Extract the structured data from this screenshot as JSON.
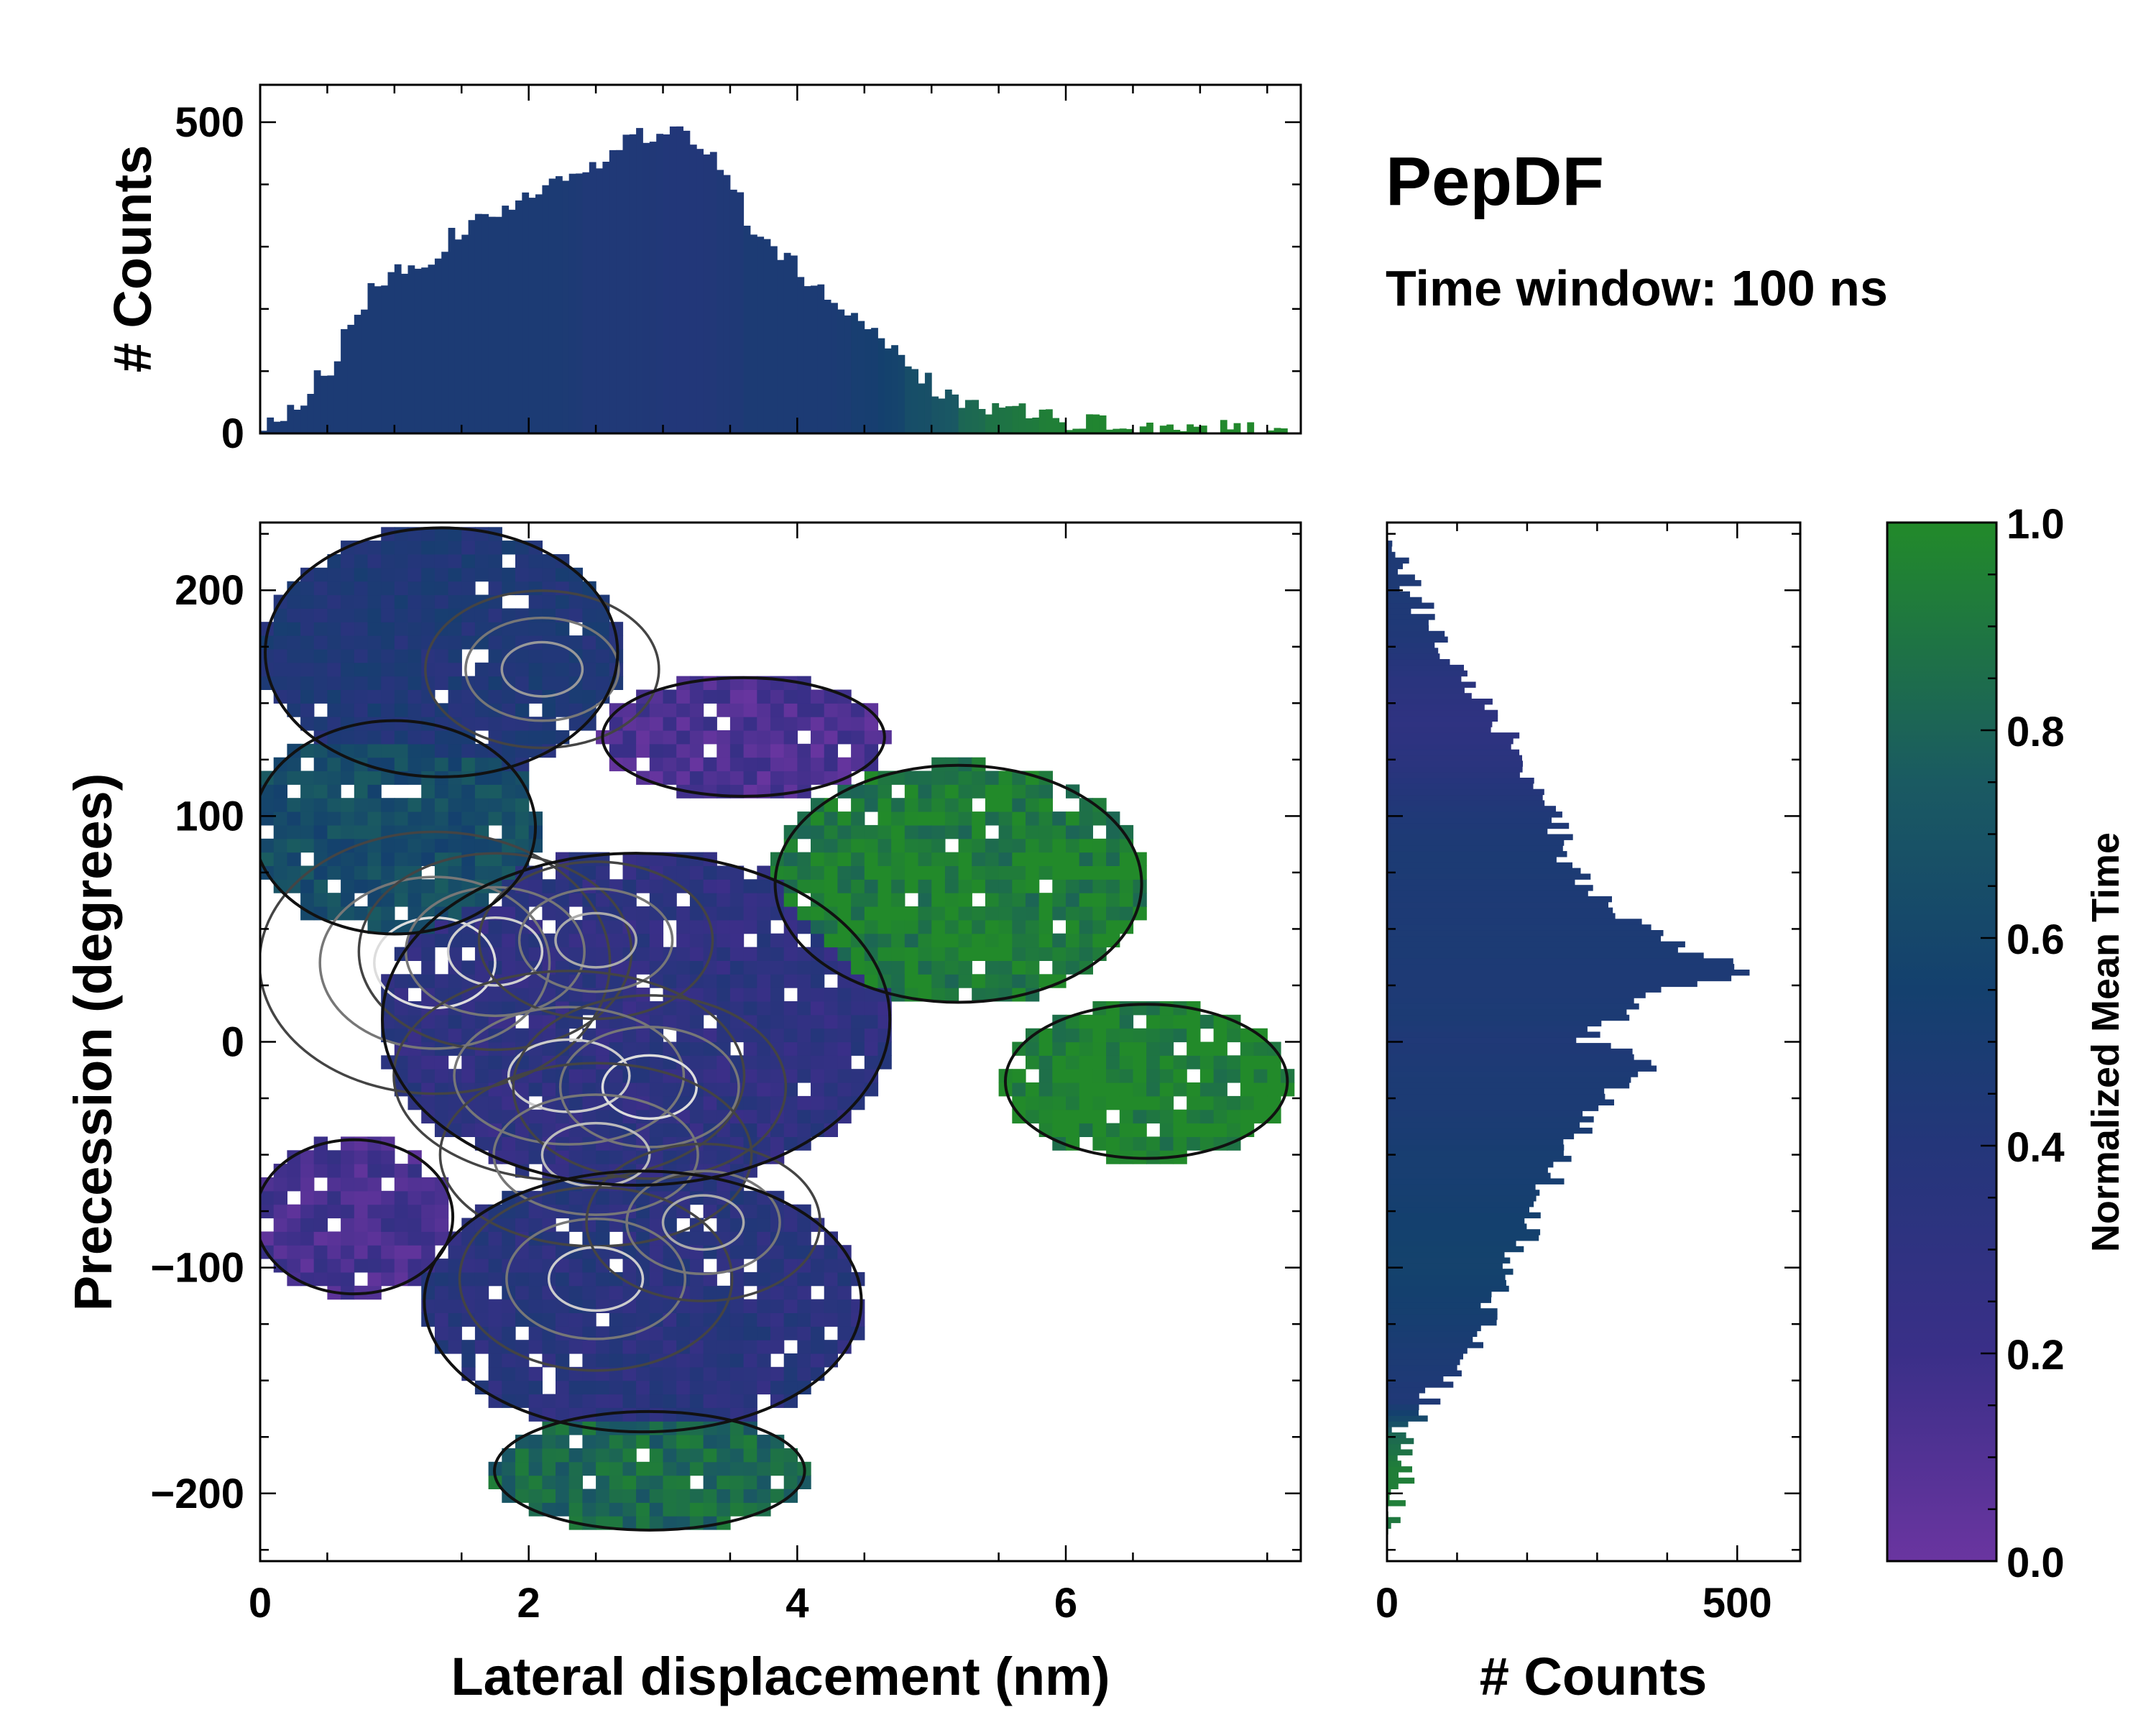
{
  "chart_data": [
    {
      "type": "heatmap",
      "panel": "main",
      "title": "PepDF",
      "subtitle": "Time window: 100 ns",
      "xlabel": "Lateral displacement (nm)",
      "ylabel": "Precession (degrees)",
      "xlim": [
        0,
        7.75
      ],
      "ylim": [
        -230,
        230
      ],
      "xticks": [
        0,
        2,
        4,
        6
      ],
      "yticks": [
        -200,
        -100,
        0,
        100,
        200
      ],
      "xtick_labels": [
        "0",
        "2",
        "4",
        "6"
      ],
      "ytick_labels": [
        "−200",
        "−100",
        "0",
        "100",
        "200"
      ],
      "color_metric": "Normalized Mean Time",
      "contours": "density contour lines, black (low) to light grey (high)",
      "regions": [
        {
          "name": "upper-left lobe",
          "x": [
            0.1,
            2.6
          ],
          "y": [
            120,
            225
          ],
          "mean_time": 0.45
        },
        {
          "name": "upper-middle lobe",
          "x": [
            2.6,
            4.6
          ],
          "y": [
            110,
            160
          ],
          "mean_time": 0.12
        },
        {
          "name": "left band",
          "x": [
            0.0,
            2.0
          ],
          "y": [
            50,
            140
          ],
          "mean_time": 0.7
        },
        {
          "name": "central core",
          "x": [
            1.0,
            4.6
          ],
          "y": [
            -60,
            80
          ],
          "mean_time": 0.3
        },
        {
          "name": "right upper arm",
          "x": [
            3.9,
            6.5
          ],
          "y": [
            20,
            120
          ],
          "mean_time": 0.95
        },
        {
          "name": "right tail",
          "x": [
            5.6,
            7.6
          ],
          "y": [
            -50,
            15
          ],
          "mean_time": 0.98
        },
        {
          "name": "lower-left lobe",
          "x": [
            0.0,
            1.4
          ],
          "y": [
            -110,
            -45
          ],
          "mean_time": 0.15
        },
        {
          "name": "lower core",
          "x": [
            1.3,
            4.4
          ],
          "y": [
            -170,
            -60
          ],
          "mean_time": 0.35
        },
        {
          "name": "bottom lobe",
          "x": [
            1.8,
            4.0
          ],
          "y": [
            -215,
            -165
          ],
          "mean_time": 0.85
        }
      ]
    },
    {
      "type": "bar",
      "panel": "top-marginal",
      "xlabel": "",
      "ylabel": "# Counts",
      "xlim": [
        0,
        7.75
      ],
      "ylim": [
        0,
        560
      ],
      "yticks": [
        0,
        500
      ],
      "ytick_labels": [
        "0",
        "500"
      ],
      "x": [
        0.1,
        0.3,
        0.5,
        0.7,
        0.9,
        1.1,
        1.3,
        1.5,
        1.7,
        1.9,
        2.1,
        2.3,
        2.5,
        2.7,
        2.9,
        3.1,
        3.3,
        3.5,
        3.7,
        3.9,
        4.1,
        4.3,
        4.5,
        4.7,
        4.9,
        5.1,
        5.3,
        5.5,
        5.7,
        5.9,
        6.1,
        6.3,
        6.5,
        6.7,
        6.9,
        7.1,
        7.3,
        7.5,
        7.7
      ],
      "values": [
        10,
        40,
        90,
        160,
        230,
        270,
        280,
        320,
        345,
        370,
        390,
        405,
        430,
        460,
        480,
        485,
        470,
        420,
        330,
        290,
        250,
        200,
        190,
        155,
        95,
        70,
        55,
        45,
        35,
        25,
        20,
        18,
        15,
        12,
        10,
        8,
        6,
        4,
        3
      ],
      "mean_time": [
        0.5,
        0.5,
        0.5,
        0.5,
        0.5,
        0.5,
        0.5,
        0.5,
        0.5,
        0.5,
        0.5,
        0.5,
        0.45,
        0.45,
        0.45,
        0.42,
        0.42,
        0.45,
        0.5,
        0.5,
        0.5,
        0.5,
        0.55,
        0.6,
        0.7,
        0.75,
        0.85,
        0.9,
        0.92,
        0.95,
        0.97,
        0.98,
        0.98,
        0.99,
        0.99,
        0.99,
        0.99,
        0.99,
        0.99
      ]
    },
    {
      "type": "bar",
      "orientation": "horizontal",
      "panel": "right-marginal",
      "xlabel": "# Counts",
      "ylabel": "",
      "xlim": [
        0,
        590
      ],
      "ylim": [
        -230,
        230
      ],
      "xticks": [
        0,
        500
      ],
      "xtick_labels": [
        "0",
        "500"
      ],
      "y": [
        220,
        200,
        180,
        160,
        140,
        120,
        100,
        80,
        60,
        40,
        30,
        20,
        10,
        0,
        -10,
        -20,
        -30,
        -40,
        -50,
        -60,
        -80,
        -100,
        -120,
        -140,
        -160,
        -175,
        -190,
        -205,
        -220
      ],
      "values": [
        20,
        35,
        70,
        110,
        160,
        200,
        240,
        260,
        310,
        420,
        520,
        370,
        330,
        280,
        380,
        340,
        300,
        280,
        260,
        240,
        210,
        180,
        150,
        110,
        60,
        20,
        25,
        15,
        5
      ],
      "mean_time": [
        0.48,
        0.48,
        0.45,
        0.35,
        0.3,
        0.35,
        0.45,
        0.5,
        0.48,
        0.5,
        0.48,
        0.48,
        0.5,
        0.45,
        0.48,
        0.5,
        0.5,
        0.52,
        0.55,
        0.55,
        0.6,
        0.62,
        0.58,
        0.5,
        0.45,
        0.85,
        0.95,
        0.95,
        0.9
      ]
    },
    {
      "type": "colorbar",
      "label": "Normalized Mean Time",
      "range": [
        0.0,
        1.0
      ],
      "ticks": [
        0.0,
        0.2,
        0.4,
        0.6,
        0.8,
        1.0
      ],
      "tick_labels": [
        "0.0",
        "0.2",
        "0.4",
        "0.6",
        "0.8",
        "1.0"
      ],
      "colors": [
        "#6a35a0",
        "#3a2f88",
        "#24367a",
        "#14406e",
        "#1a5a62",
        "#228a2a"
      ]
    }
  ]
}
